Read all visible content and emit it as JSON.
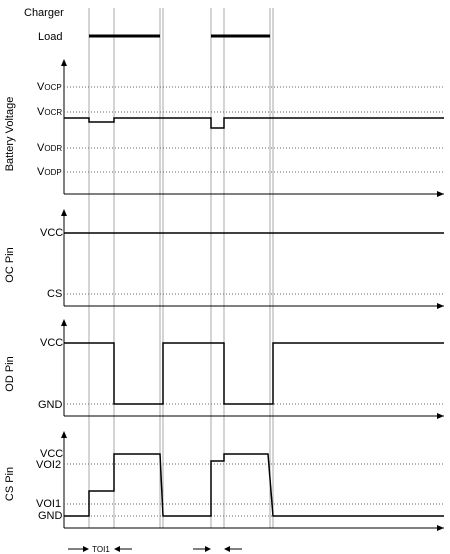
{
  "header": {
    "charger_label": "Charger",
    "load_label": "Load"
  },
  "panels": {
    "battery": {
      "title": "Battery Voltage",
      "levels": [
        {
          "main": "V",
          "sub": "OCP"
        },
        {
          "main": "V",
          "sub": "OCR"
        },
        {
          "main": "V",
          "sub": "ODR"
        },
        {
          "main": "V",
          "sub": "ODP"
        }
      ]
    },
    "oc": {
      "title": "OC Pin",
      "levels": [
        "VCC",
        "CS"
      ]
    },
    "od": {
      "title": "OD Pin",
      "levels": [
        "VCC",
        "GND"
      ]
    },
    "cs": {
      "title": "CS Pin",
      "levels": [
        "VCC",
        "VOI2",
        "VOI1",
        "GND"
      ]
    }
  },
  "timing": {
    "toi1_label": "TOI1"
  }
}
